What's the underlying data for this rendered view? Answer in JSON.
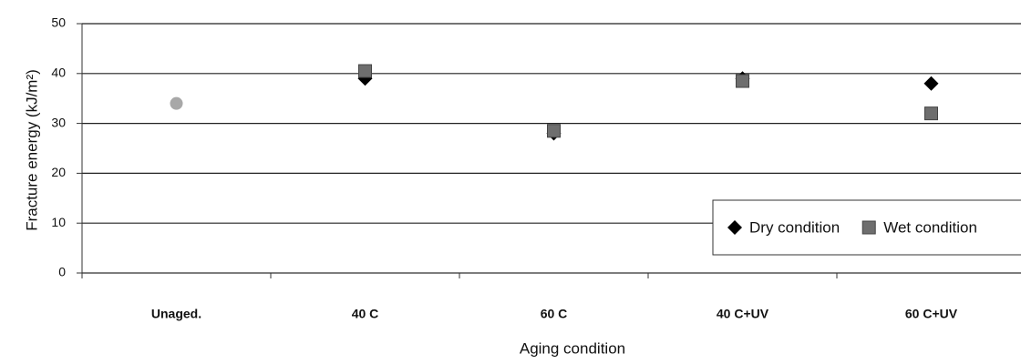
{
  "chart_data": {
    "type": "scatter",
    "xlabel": "Aging condition",
    "ylabel": "Fracture energy (kJ/m²)",
    "categories": [
      "Unaged.",
      "40 C",
      "60 C",
      "40 C+UV",
      "60 C+UV"
    ],
    "series": [
      {
        "name": "Dry condition",
        "color": "#000000",
        "marker": "diamond",
        "values": [
          null,
          39,
          28,
          39,
          38
        ]
      },
      {
        "name": "Wet condition",
        "color": "#6e6e6e",
        "marker": "square",
        "values": [
          null,
          40.5,
          28.5,
          38.5,
          32
        ]
      },
      {
        "color": "#a8a8a8",
        "marker": "circle",
        "values": [
          34,
          null,
          null,
          null,
          null
        ]
      }
    ],
    "ylim": [
      0,
      50
    ],
    "yticks": [
      0,
      10,
      20,
      30,
      40,
      50
    ],
    "grid": true
  }
}
